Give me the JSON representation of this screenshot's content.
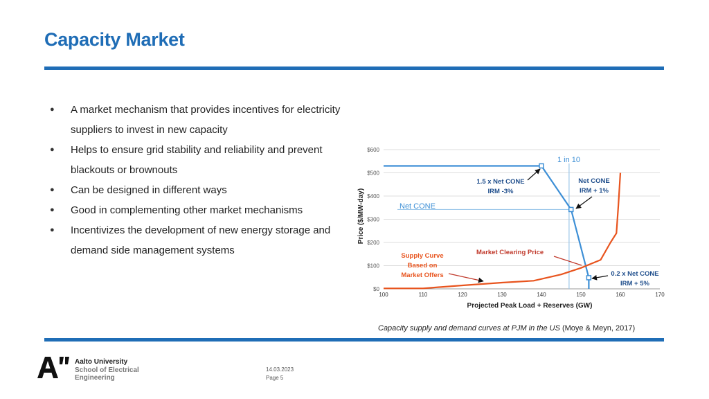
{
  "slide": {
    "title": "Capacity Market",
    "bullets": [
      "A market mechanism that provides incentives for electricity suppliers to invest in new capacity",
      "Helps to ensure grid stability and reliability and prevent blackouts or brownouts",
      "Can be designed in different ways",
      "Good in complementing other market mechanisms",
      "Incentivizes the development of new energy storage and demand side management systems"
    ],
    "caption_italic": "Capacity supply and demand curves at PJM in the US",
    "caption_source": " (Moye & Meyn, 2017)"
  },
  "footer": {
    "university": "Aalto University",
    "school_line1": "School of Electrical",
    "school_line2": "Engineering",
    "date": "14.03.2023",
    "page": "Page 5"
  },
  "colors": {
    "brand_blue": "#1f6db6",
    "demand_curve": "#3d8fd6",
    "supply_curve": "#e8541e",
    "annotation_blue": "#1f4e8c",
    "annotation_red": "#c0392b"
  },
  "chart_data": {
    "type": "line",
    "xlabel": "Projected Peak Load + Reserves (GW)",
    "ylabel": "Price ($/MW-day)",
    "xlim": [
      100,
      170
    ],
    "ylim": [
      0,
      600
    ],
    "x_ticks": [
      "100",
      "110",
      "120",
      "130",
      "140",
      "150",
      "160",
      "170"
    ],
    "y_ticks": [
      "$0",
      "$100",
      "$200",
      "$300",
      "$400",
      "$500",
      "$600"
    ],
    "grid": true,
    "series": [
      {
        "name": "Demand curve",
        "points": [
          [
            100,
            530
          ],
          [
            140,
            530
          ],
          [
            147.5,
            342
          ],
          [
            152,
            48
          ],
          [
            152,
            0
          ]
        ]
      },
      {
        "name": "Supply Curve Based on Market Offers",
        "points": [
          [
            100,
            2
          ],
          [
            110,
            2
          ],
          [
            120,
            15
          ],
          [
            130,
            27
          ],
          [
            138,
            35
          ],
          [
            145,
            62
          ],
          [
            150,
            90
          ],
          [
            155,
            125
          ],
          [
            157.5,
            200
          ],
          [
            159,
            240
          ],
          [
            159.5,
            360
          ],
          [
            160,
            500
          ]
        ]
      }
    ],
    "reference_lines": [
      {
        "label": "Net CONE",
        "y": 342
      },
      {
        "label": "1 in 10",
        "x": 147
      }
    ],
    "annotations": [
      "1.5 x Net CONE",
      "IRM -3%",
      "Net CONE",
      "IRM + 1%",
      "0.2 x Net CONE",
      "IRM + 5%",
      "Market Clearing Price",
      "Supply Curve",
      "Based on",
      "Market Offers"
    ]
  }
}
